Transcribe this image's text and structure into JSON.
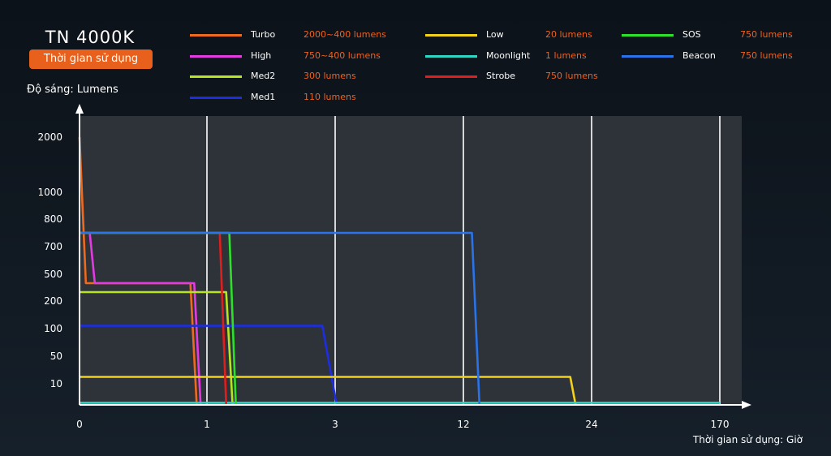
{
  "header": {
    "title": "TN 4000K",
    "badge": "Thời gian sử dụng"
  },
  "chart_data": {
    "type": "line",
    "ylabel": "Độ sáng: Lumens",
    "xlabel": "Thời gian sử dụng: Giờ",
    "x_ticks": [
      "0",
      "1",
      "3",
      "12",
      "24",
      "170"
    ],
    "y_ticks": [
      "10",
      "50",
      "100",
      "200",
      "500",
      "700",
      "800",
      "1000",
      "2000"
    ],
    "grid": true,
    "legend_position": "top",
    "background_color": "#2e3339",
    "series": [
      {
        "name": "Turbo",
        "label": "2000~400 lumens",
        "color": "#ee6a1f",
        "points": [
          [
            0,
            2000
          ],
          [
            0.05,
            400
          ],
          [
            0.87,
            400
          ],
          [
            0.92,
            0
          ]
        ]
      },
      {
        "name": "High",
        "label": "750~400 lumens",
        "color": "#e23ce0",
        "points": [
          [
            0,
            750
          ],
          [
            0.08,
            750
          ],
          [
            0.12,
            400
          ],
          [
            0.9,
            400
          ],
          [
            0.95,
            0
          ]
        ]
      },
      {
        "name": "Med2",
        "label": "300 lumens",
        "color": "#b5e61e",
        "points": [
          [
            0,
            300
          ],
          [
            1.3,
            300
          ],
          [
            1.4,
            0
          ]
        ]
      },
      {
        "name": "Med1",
        "label": "110 lumens",
        "color": "#1c2ee0",
        "points": [
          [
            0,
            110
          ],
          [
            2.8,
            110
          ],
          [
            3.1,
            0
          ]
        ]
      },
      {
        "name": "Low",
        "label": "20 lumens",
        "color": "#f2d21a",
        "points": [
          [
            0,
            20
          ],
          [
            22,
            20
          ],
          [
            22.5,
            0
          ]
        ]
      },
      {
        "name": "Moonlight",
        "label": "1 lumens",
        "color": "#2fd6c4",
        "points": [
          [
            0,
            1
          ],
          [
            170,
            1
          ]
        ]
      },
      {
        "name": "Strobe",
        "label": "750 lumens",
        "color": "#e01e1e",
        "points": [
          [
            0,
            750
          ],
          [
            1.2,
            750
          ],
          [
            1.3,
            0
          ]
        ]
      },
      {
        "name": "SOS",
        "label": "750 lumens",
        "color": "#2ee02c",
        "points": [
          [
            0,
            750
          ],
          [
            1.35,
            750
          ],
          [
            1.45,
            0
          ]
        ]
      },
      {
        "name": "Beacon",
        "label": "750 lumens",
        "color": "#2a73e8",
        "points": [
          [
            0,
            750
          ],
          [
            12.8,
            750
          ],
          [
            13.5,
            0
          ]
        ]
      }
    ]
  }
}
